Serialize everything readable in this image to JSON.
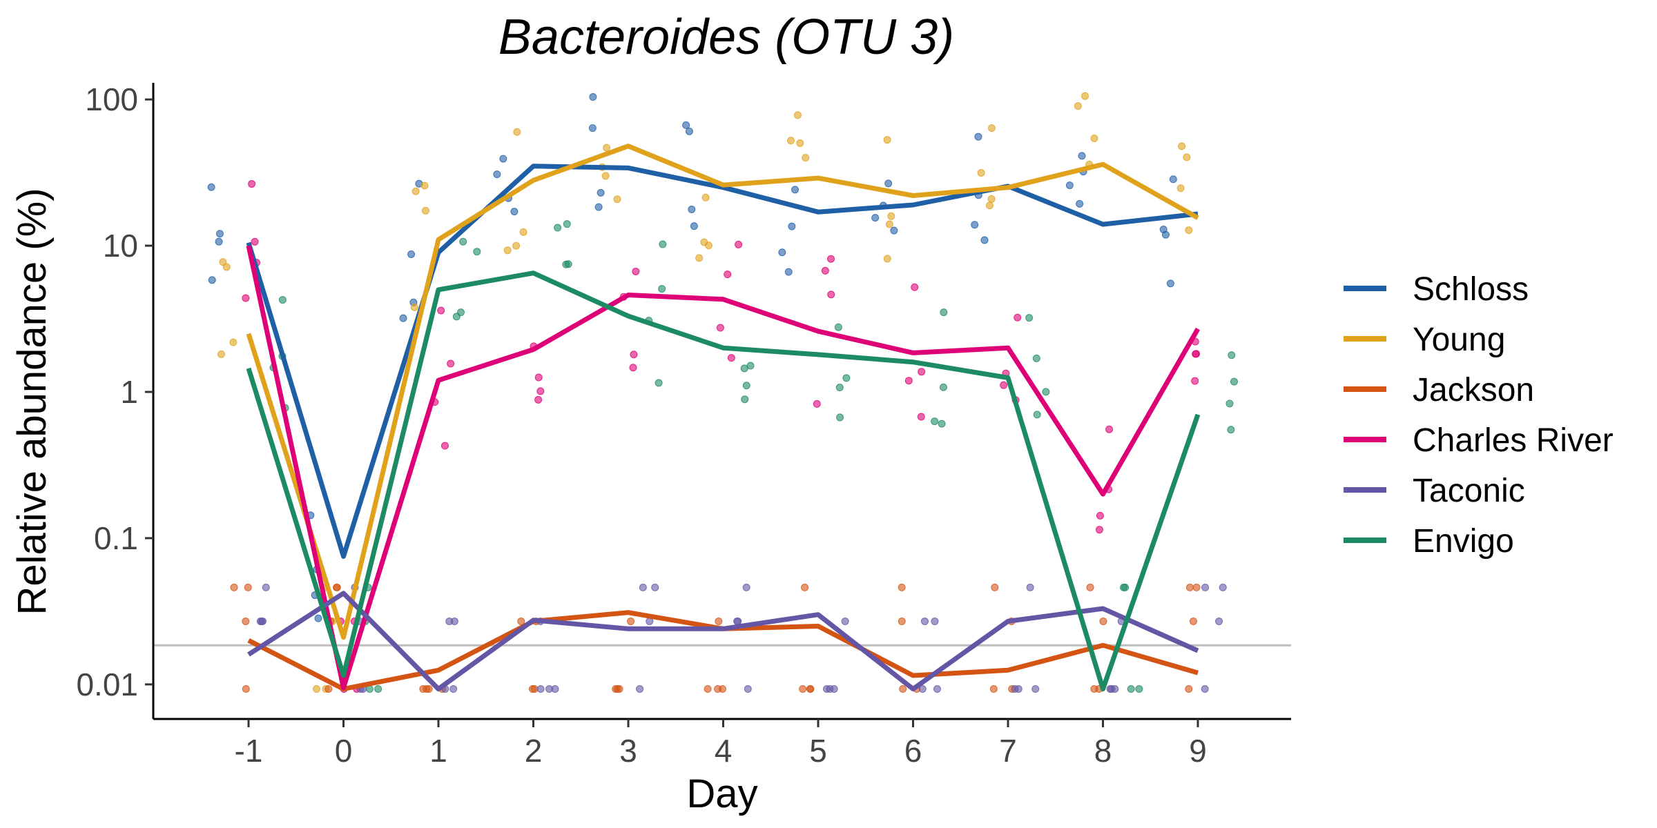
{
  "chart_data": {
    "type": "line",
    "title": "Bacteroides (OTU 3)",
    "xlabel": "Day",
    "ylabel": "Relative abundance (%)",
    "x": [
      -1,
      0,
      1,
      2,
      3,
      4,
      5,
      6,
      7,
      8,
      9
    ],
    "x_tick_labels": [
      "-1",
      "0",
      "1",
      "2",
      "3",
      "4",
      "5",
      "6",
      "7",
      "8",
      "9"
    ],
    "y_scale": "log10",
    "ylim": [
      0.0058,
      130
    ],
    "y_ticks": [
      0.01,
      0.1,
      1,
      10,
      100
    ],
    "y_tick_labels": [
      "0.01",
      "0.1",
      "1",
      "10",
      "100"
    ],
    "limit_of_detection": 0.0185,
    "limit_line_color": "#BDBDBD",
    "grid": false,
    "legend_position": "right",
    "series": [
      {
        "name": "Schloss",
        "color": "#1F5FA6",
        "values": [
          10.5,
          0.075,
          9,
          35,
          34,
          25,
          17,
          19,
          25.5,
          14,
          16.5
        ]
      },
      {
        "name": "Young",
        "color": "#E0A11B",
        "values": [
          2.5,
          0.021,
          11,
          28,
          48,
          26,
          29,
          22,
          25,
          36,
          15.5
        ]
      },
      {
        "name": "Jackson",
        "color": "#D35413",
        "values": [
          0.02,
          0.0093,
          0.0125,
          0.027,
          0.031,
          0.024,
          0.025,
          0.0115,
          0.0125,
          0.0185,
          0.012
        ]
      },
      {
        "name": "Charles River",
        "color": "#DE0077",
        "values": [
          10,
          0.0095,
          1.2,
          1.95,
          4.6,
          4.3,
          2.6,
          1.85,
          2.0,
          0.2,
          2.7
        ]
      },
      {
        "name": "Taconic",
        "color": "#6456A5",
        "values": [
          0.016,
          0.042,
          0.0093,
          0.0275,
          0.024,
          0.024,
          0.03,
          0.0093,
          0.027,
          0.033,
          0.017
        ]
      },
      {
        "name": "Envigo",
        "color": "#1C8A63",
        "values": [
          1.45,
          0.0115,
          5.0,
          6.5,
          3.3,
          2.0,
          1.8,
          1.6,
          1.25,
          0.0093,
          0.7
        ]
      }
    ]
  }
}
